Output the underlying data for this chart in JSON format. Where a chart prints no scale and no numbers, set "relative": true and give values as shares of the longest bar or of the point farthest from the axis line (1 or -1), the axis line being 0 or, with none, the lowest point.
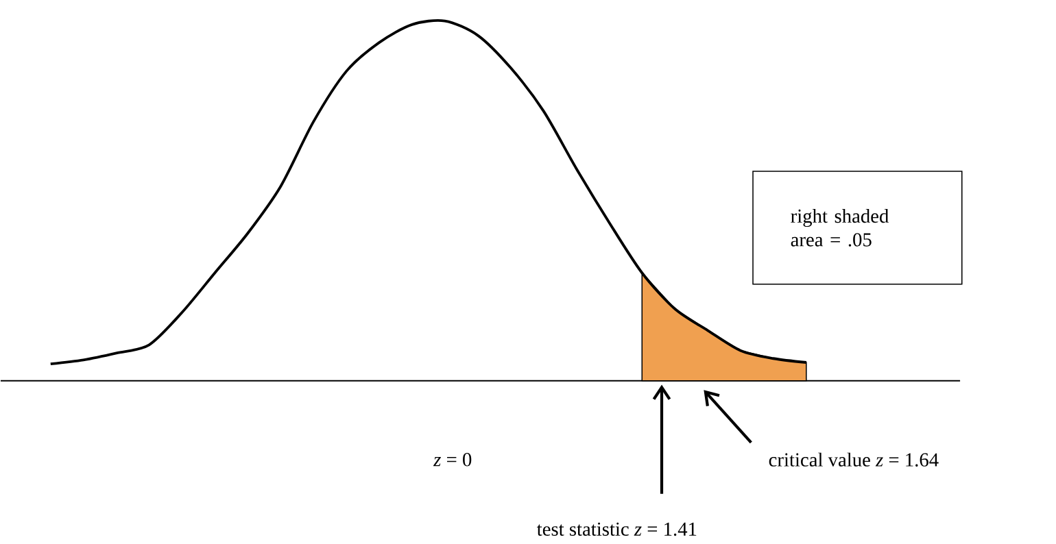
{
  "chart_data": {
    "type": "line",
    "relative": true,
    "categories": [
      null,
      null,
      null,
      null,
      null,
      null,
      null,
      null,
      null,
      null,
      null,
      null,
      null,
      null,
      null,
      null,
      null,
      null,
      null,
      null,
      null,
      null,
      null,
      null
    ],
    "series": [
      {
        "type": "area",
        "color": "#f0a050",
        "values": [
          null,
          null,
          null,
          null,
          null,
          null,
          null,
          null,
          null,
          null,
          null,
          null,
          null,
          null,
          null,
          null,
          null,
          null,
          0.3,
          0.2,
          0.14,
          0.084,
          0.062,
          0.051
        ]
      },
      {
        "color": "#000000",
        "values": [
          0.047,
          0.058,
          0.077,
          0.1,
          0.19,
          0.3,
          0.41,
          0.54,
          0.72,
          0.86,
          0.94,
          0.99,
          1,
          0.96,
          0.87,
          0.75,
          0.59,
          0.44,
          0.3,
          0.2,
          0.14,
          0.084,
          0.062,
          0.051
        ]
      }
    ],
    "annotations": [
      "right shaded area = .05",
      "*z* = 0",
      "critical value *z* = 1.64",
      "test statistic *z* = 1.41"
    ]
  }
}
